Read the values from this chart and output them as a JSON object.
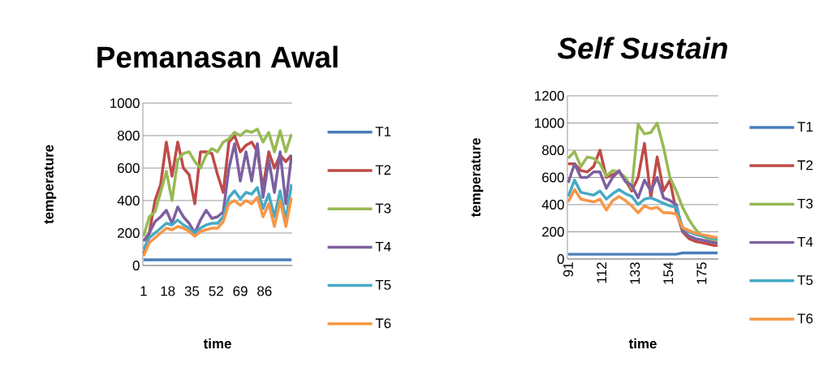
{
  "chart_data": [
    {
      "type": "line",
      "title": "Pemanasan Awal",
      "xlabel": "time",
      "ylabel": "temperature",
      "grid": "y",
      "legend": "right",
      "xlim": [
        0.5,
        105.5
      ],
      "xticks": [
        1,
        18,
        35,
        52,
        69,
        86
      ],
      "ylim": [
        0,
        1000
      ],
      "yticks": [
        0,
        200,
        400,
        600,
        800,
        1000
      ],
      "x": [
        1,
        5,
        9,
        13,
        17,
        21,
        25,
        29,
        33,
        37,
        41,
        45,
        49,
        53,
        57,
        61,
        65,
        69,
        73,
        77,
        81,
        85,
        89,
        93,
        97,
        101,
        105
      ],
      "series": [
        {
          "name": "T1",
          "color": "#4a7ebb",
          "values": [
            35,
            35,
            35,
            35,
            35,
            35,
            35,
            35,
            35,
            35,
            35,
            35,
            35,
            35,
            35,
            35,
            35,
            35,
            35,
            35,
            35,
            35,
            35,
            35,
            35,
            35,
            35
          ]
        },
        {
          "name": "T2",
          "color": "#be4b48",
          "values": [
            60,
            200,
            400,
            500,
            760,
            550,
            760,
            600,
            560,
            380,
            700,
            700,
            690,
            560,
            450,
            760,
            800,
            700,
            740,
            760,
            700,
            480,
            700,
            600,
            680,
            640,
            680
          ]
        },
        {
          "name": "T3",
          "color": "#98b954",
          "values": [
            180,
            300,
            330,
            450,
            580,
            400,
            650,
            690,
            700,
            640,
            600,
            680,
            720,
            700,
            760,
            780,
            820,
            800,
            830,
            820,
            840,
            760,
            820,
            700,
            830,
            700,
            810
          ]
        },
        {
          "name": "T4",
          "color": "#7d60a0",
          "values": [
            150,
            200,
            270,
            300,
            340,
            260,
            360,
            300,
            260,
            200,
            280,
            340,
            290,
            300,
            330,
            600,
            750,
            520,
            700,
            520,
            750,
            420,
            650,
            450,
            700,
            380,
            680
          ]
        },
        {
          "name": "T5",
          "color": "#46aac5",
          "values": [
            100,
            170,
            200,
            230,
            260,
            250,
            280,
            250,
            230,
            200,
            230,
            250,
            260,
            260,
            300,
            420,
            460,
            410,
            450,
            440,
            480,
            350,
            440,
            300,
            460,
            280,
            500
          ]
        },
        {
          "name": "T6",
          "color": "#f79646",
          "values": [
            60,
            140,
            170,
            200,
            230,
            220,
            240,
            230,
            210,
            180,
            210,
            220,
            230,
            230,
            270,
            380,
            400,
            370,
            400,
            380,
            420,
            300,
            380,
            240,
            400,
            240,
            420
          ]
        }
      ]
    },
    {
      "type": "line",
      "title": "Self Sustain",
      "xlabel": "time",
      "ylabel": "temperature",
      "grid": "y",
      "legend": "right",
      "xlim": [
        90.5,
        185.5
      ],
      "xticks": [
        91,
        112,
        133,
        154,
        175
      ],
      "ylim": [
        0,
        1200
      ],
      "yticks": [
        0,
        200,
        400,
        600,
        800,
        1000,
        1200
      ],
      "x": [
        91,
        95,
        99,
        103,
        107,
        111,
        115,
        119,
        123,
        127,
        131,
        135,
        139,
        143,
        147,
        151,
        155,
        159,
        163,
        167,
        171,
        175,
        179,
        183,
        185
      ],
      "series": [
        {
          "name": "T1",
          "color": "#4a7ebb",
          "values": [
            35,
            35,
            35,
            35,
            35,
            35,
            35,
            35,
            35,
            35,
            35,
            35,
            35,
            35,
            35,
            35,
            35,
            35,
            45,
            45,
            45,
            45,
            45,
            45,
            45
          ]
        },
        {
          "name": "T2",
          "color": "#be4b48",
          "values": [
            700,
            700,
            650,
            640,
            680,
            800,
            600,
            620,
            640,
            580,
            500,
            600,
            850,
            450,
            750,
            500,
            580,
            350,
            200,
            150,
            130,
            120,
            110,
            100,
            100
          ]
        },
        {
          "name": "T3",
          "color": "#98b954",
          "values": [
            740,
            790,
            680,
            750,
            740,
            700,
            610,
            650,
            640,
            600,
            520,
            990,
            920,
            930,
            1000,
            820,
            600,
            500,
            380,
            290,
            220,
            170,
            150,
            140,
            140
          ]
        },
        {
          "name": "T4",
          "color": "#7d60a0",
          "values": [
            560,
            700,
            600,
            600,
            640,
            640,
            520,
            600,
            650,
            570,
            540,
            450,
            580,
            500,
            600,
            450,
            430,
            400,
            210,
            170,
            150,
            140,
            130,
            120,
            120
          ]
        },
        {
          "name": "T5",
          "color": "#46aac5",
          "values": [
            460,
            580,
            490,
            480,
            470,
            500,
            440,
            480,
            510,
            480,
            460,
            400,
            440,
            450,
            430,
            410,
            390,
            380,
            230,
            200,
            180,
            170,
            160,
            150,
            150
          ]
        },
        {
          "name": "T6",
          "color": "#f79646",
          "values": [
            420,
            510,
            440,
            430,
            420,
            440,
            360,
            430,
            460,
            430,
            390,
            340,
            390,
            370,
            380,
            340,
            340,
            330,
            230,
            210,
            190,
            180,
            170,
            160,
            160
          ]
        }
      ]
    }
  ]
}
